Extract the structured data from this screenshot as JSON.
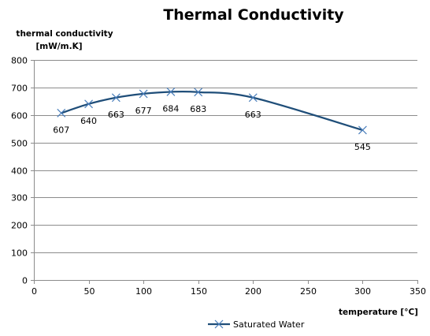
{
  "chart_data": {
    "type": "scatter",
    "title": "Thermal Conductivity",
    "ylabel_line1": "thermal conductivity",
    "ylabel_line2": "[mW/m.K]",
    "xlabel": "temperature [°C]",
    "xlim": [
      0,
      350
    ],
    "ylim": [
      0,
      800
    ],
    "x_ticks": [
      0,
      50,
      100,
      150,
      200,
      250,
      300,
      350
    ],
    "y_ticks": [
      0,
      100,
      200,
      300,
      400,
      500,
      600,
      700,
      800
    ],
    "grid": "horizontal",
    "legend_position": "bottom",
    "line_style": "smooth line with x markers",
    "series": [
      {
        "name": "Saturated Water",
        "color": "#1F4E79",
        "x": [
          25,
          50,
          75,
          100,
          125,
          150,
          200,
          300
        ],
        "y": [
          607,
          640,
          663,
          677,
          684,
          683,
          663,
          545
        ],
        "labels": [
          "607",
          "640",
          "663",
          "677",
          "684",
          "683",
          "663",
          "545"
        ]
      }
    ]
  }
}
